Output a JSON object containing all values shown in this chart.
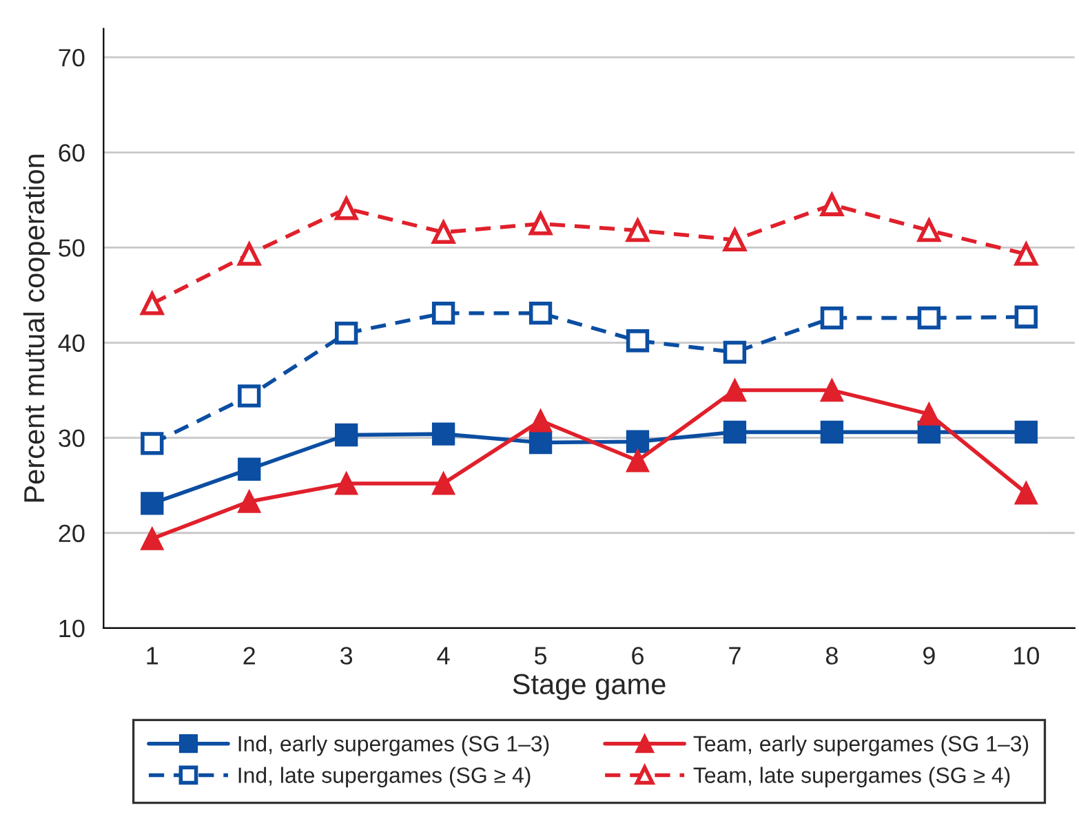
{
  "chart_data": {
    "type": "line",
    "xlabel": "Stage game",
    "ylabel": "Percent mutual cooperation",
    "x": [
      1,
      2,
      3,
      4,
      5,
      6,
      7,
      8,
      9,
      10
    ],
    "xlim": [
      0.5,
      10.5
    ],
    "xticks": [
      1,
      2,
      3,
      4,
      5,
      6,
      7,
      8,
      9,
      10
    ],
    "ylim": [
      10,
      73
    ],
    "yticks": [
      10,
      20,
      30,
      40,
      50,
      60,
      70
    ],
    "grid": "y",
    "legend": "bottom",
    "series": [
      {
        "name": "Ind, early supergames (SG 1–3)",
        "color": "#0b4ea2",
        "marker": "square",
        "line_style": "solid",
        "values": [
          23.1,
          26.7,
          30.3,
          30.4,
          29.5,
          29.6,
          30.6,
          30.6,
          30.6,
          30.6
        ]
      },
      {
        "name": "Team, early supergames (SG 1–3)",
        "color": "#e0202b",
        "marker": "triangle",
        "line_style": "solid",
        "values": [
          19.4,
          23.3,
          25.2,
          25.2,
          31.8,
          27.6,
          35.0,
          35.0,
          32.5,
          24.2
        ]
      },
      {
        "name": "Ind, late supergames (SG ≥ 4)",
        "color": "#0b4ea2",
        "marker": "square",
        "line_style": "dashed",
        "values": [
          29.4,
          34.4,
          41.0,
          43.1,
          43.1,
          40.2,
          39.0,
          42.6,
          42.6,
          42.7
        ]
      },
      {
        "name": "Team, late supergames (SG ≥ 4)",
        "color": "#e0202b",
        "marker": "triangle",
        "line_style": "dashed",
        "values": [
          44.1,
          49.3,
          54.1,
          51.6,
          52.5,
          51.8,
          50.8,
          54.5,
          51.8,
          49.3
        ]
      }
    ]
  }
}
